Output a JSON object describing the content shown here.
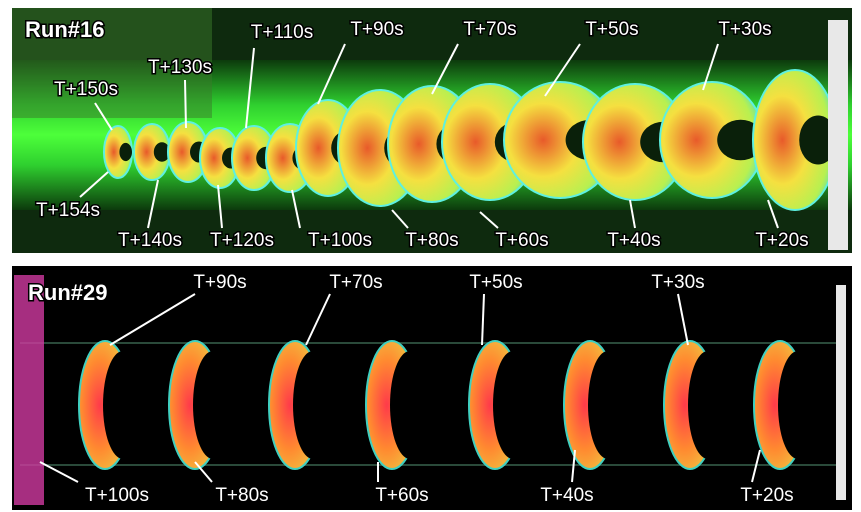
{
  "panels": [
    {
      "title": "Run#16",
      "labels": [
        "T+150s",
        "T+130s",
        "T+110s",
        "T+90s",
        "T+70s",
        "T+50s",
        "T+30s",
        "T+154s",
        "T+140s",
        "T+120s",
        "T+100s",
        "T+80s",
        "T+60s",
        "T+40s",
        "T+20s"
      ]
    },
    {
      "title": "Run#29",
      "labels": [
        "T+90s",
        "T+70s",
        "T+50s",
        "T+30s",
        "T+100s",
        "T+80s",
        "T+60s",
        "T+40s",
        "T+20s"
      ]
    }
  ]
}
